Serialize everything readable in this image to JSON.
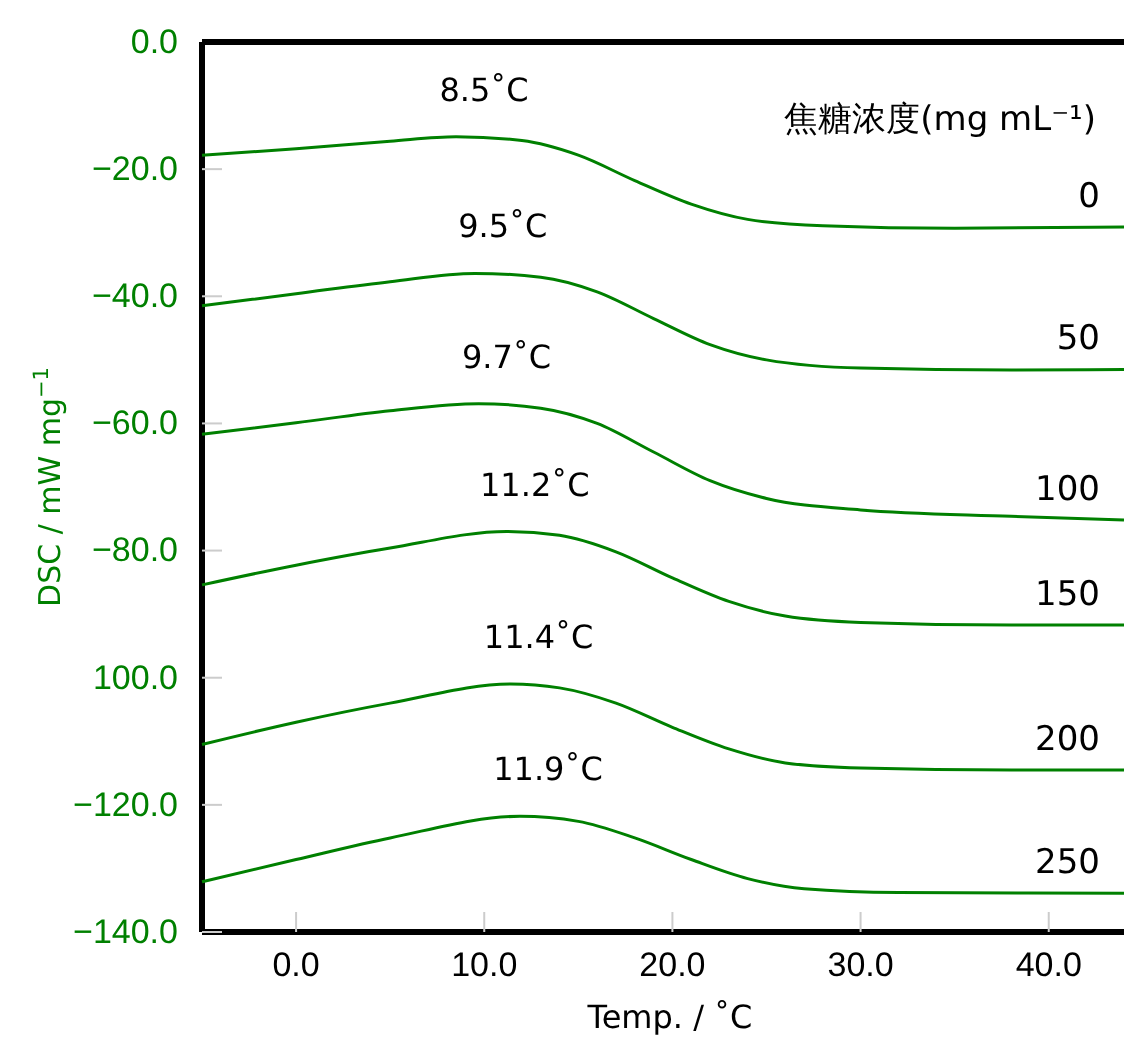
{
  "chart_data": {
    "type": "line",
    "xlabel": "Temp. / ˚C",
    "ylabel": "DSC / mW mg$^{−1}$",
    "legend_title": "焦糖浓度(mg mL⁻¹)",
    "xlim": [
      -5,
      44
    ],
    "ylim": [
      -140,
      0
    ],
    "xticks": [
      {
        "value": 0,
        "label": "0.0"
      },
      {
        "value": 10,
        "label": "10.0"
      },
      {
        "value": 20,
        "label": "20.0"
      },
      {
        "value": 30,
        "label": "30.0"
      },
      {
        "value": 40,
        "label": "40.0"
      }
    ],
    "yticks": [
      {
        "value": 0,
        "label": "0.0"
      },
      {
        "value": -20,
        "label": "−20.0"
      },
      {
        "value": -40,
        "label": "−40.0"
      },
      {
        "value": -60,
        "label": "−60.0"
      },
      {
        "value": -80,
        "label": "−80.0"
      },
      {
        "value": -100,
        "label": "100.0"
      },
      {
        "value": -120,
        "label": "−120.0"
      },
      {
        "value": -140,
        "label": "−140.0"
      }
    ],
    "series": [
      {
        "name": "0",
        "color": "#008000",
        "x": [
          -5,
          0,
          5,
          8.5,
          12,
          15,
          18,
          21,
          24,
          28,
          35,
          44
        ],
        "values": [
          -17.8,
          -16.8,
          -15.6,
          -14.9,
          -15.5,
          -17.8,
          -21.8,
          -25.5,
          -27.9,
          -28.9,
          -29.3,
          -29.1
        ]
      },
      {
        "name": "50",
        "color": "#008000",
        "x": [
          -5,
          0,
          5,
          9.5,
          13,
          16,
          19,
          22,
          25,
          30,
          38,
          44
        ],
        "values": [
          -41.5,
          -39.6,
          -37.7,
          -36.4,
          -37.0,
          -39.3,
          -43.5,
          -47.6,
          -50.0,
          -51.3,
          -51.6,
          -51.5
        ]
      },
      {
        "name": "100",
        "color": "#008000",
        "x": [
          -5,
          0,
          5,
          9.7,
          13,
          16,
          19,
          22,
          25,
          30,
          38,
          44
        ],
        "values": [
          -61.7,
          -59.9,
          -58.0,
          -56.9,
          -57.6,
          -60.0,
          -64.5,
          -69.0,
          -71.8,
          -73.6,
          -74.6,
          -75.2
        ]
      },
      {
        "name": "150",
        "color": "#008000",
        "x": [
          -5,
          0,
          5,
          11.2,
          14,
          17,
          20,
          23,
          26,
          30,
          38,
          44
        ],
        "values": [
          -85.4,
          -82.3,
          -79.6,
          -77.0,
          -77.6,
          -80.2,
          -84.3,
          -88.0,
          -90.3,
          -91.3,
          -91.7,
          -91.7
        ]
      },
      {
        "name": "200",
        "color": "#008000",
        "x": [
          -5,
          0,
          5,
          11.4,
          14,
          17,
          20,
          23,
          26,
          30,
          38,
          44
        ],
        "values": [
          -110.5,
          -107.0,
          -104.0,
          -101.0,
          -101.6,
          -104.0,
          -107.8,
          -111.2,
          -113.4,
          -114.2,
          -114.5,
          -114.5
        ]
      },
      {
        "name": "250",
        "color": "#008000",
        "x": [
          -5,
          0,
          5,
          11.9,
          15,
          18,
          21,
          24,
          27,
          32,
          44
        ],
        "values": [
          -132.1,
          -128.6,
          -125.2,
          -121.8,
          -122.6,
          -125.2,
          -128.6,
          -131.6,
          -133.2,
          -133.8,
          -133.9
        ]
      }
    ],
    "annotations": [
      {
        "text": "8.5˚C",
        "x": 8.5,
        "y": -14.9
      },
      {
        "text": "9.5˚C",
        "x": 9.5,
        "y": -36.4
      },
      {
        "text": "9.7˚C",
        "x": 9.7,
        "y": -56.9
      },
      {
        "text": "11.2˚C",
        "x": 11.2,
        "y": -77.0
      },
      {
        "text": "11.4˚C",
        "x": 11.4,
        "y": -101.0
      },
      {
        "text": "11.9˚C",
        "x": 11.9,
        "y": -121.8
      }
    ]
  }
}
